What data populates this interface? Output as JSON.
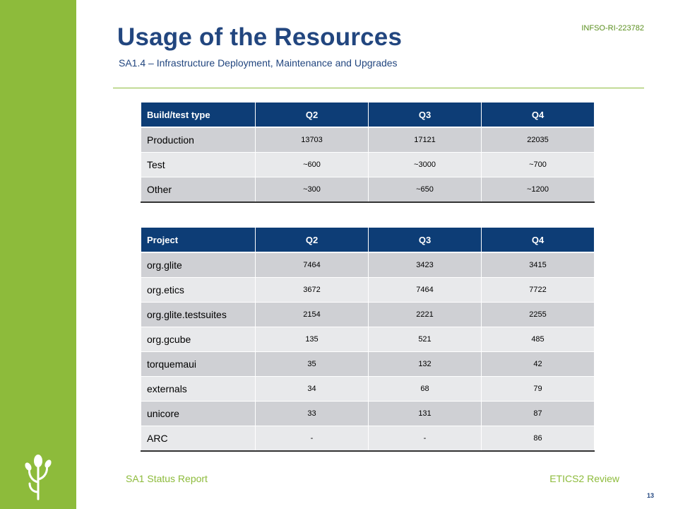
{
  "header": {
    "doc_id": "INFSO-RI-223782",
    "title": "Usage of the Resources",
    "subtitle": "SA1.4 – Infrastructure Deployment, Maintenance and Upgrades"
  },
  "build_table": {
    "columns": [
      "Build/test type",
      "Q2",
      "Q3",
      "Q4"
    ],
    "rows": [
      [
        "Production",
        "13703",
        "17121",
        "22035"
      ],
      [
        "Test",
        "~600",
        "~3000",
        "~700"
      ],
      [
        "Other",
        "~300",
        "~650",
        "~1200"
      ]
    ]
  },
  "project_table": {
    "columns": [
      "Project",
      "Q2",
      "Q3",
      "Q4"
    ],
    "rows": [
      [
        "org.glite",
        "7464",
        "3423",
        "3415"
      ],
      [
        "org.etics",
        "3672",
        "7464",
        "7722"
      ],
      [
        "org.glite.testsuites",
        "2154",
        "2221",
        "2255"
      ],
      [
        "org.gcube",
        "135",
        "521",
        "485"
      ],
      [
        "torquemaui",
        "35",
        "132",
        "42"
      ],
      [
        "externals",
        "34",
        "68",
        "79"
      ],
      [
        "unicore",
        "33",
        "131",
        "87"
      ],
      [
        "ARC",
        "-",
        "-",
        "86"
      ]
    ]
  },
  "footer": {
    "left": "SA1 Status Report",
    "right": "ETICS2 Review",
    "page_number": "13"
  },
  "colors": {
    "sidebar_green": "#8dbb3b",
    "title_blue": "#22467f",
    "header_navy": "#0d3d76",
    "row_dark": "#cfd0d4",
    "row_light": "#e8e9eb"
  }
}
